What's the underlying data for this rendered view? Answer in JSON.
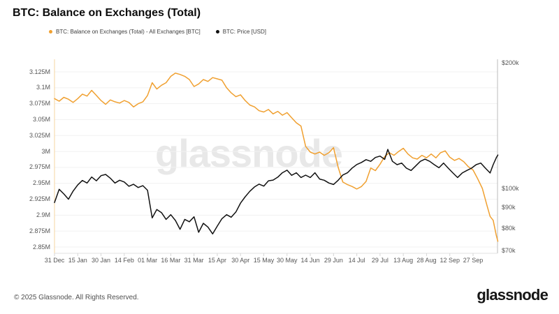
{
  "header": {
    "title": "BTC: Balance on Exchanges (Total)"
  },
  "legend": [
    {
      "label": "BTC: Balance on Exchanges (Total) - All Exchanges [BTC]",
      "color": "#f0a030"
    },
    {
      "label": "BTC: Price [USD]",
      "color": "#111111"
    }
  ],
  "watermark": "glassnode",
  "footer": {
    "copyright": "© 2025 Glassnode. All Rights Reserved.",
    "brand": "glassnode"
  },
  "colors": {
    "balance_line": "#f0a030",
    "price_line": "#111111",
    "grid": "#f1f1f1",
    "left_spine": "#f6d5a2",
    "right_spine": "#bbbbbb",
    "bottom_spine": "#e2e2e2",
    "tick_mark": "#d6d6d6"
  },
  "chart_data": {
    "type": "line",
    "title": "BTC: Balance on Exchanges (Total)",
    "grid": "horizontal-only",
    "legend_position": "top-left",
    "x_axis": {
      "unit": "days since 31 Dec",
      "domain_days": [
        0,
        286
      ],
      "tick_days": [
        0,
        15,
        30,
        45,
        60,
        75,
        90,
        105,
        120,
        135,
        150,
        165,
        180,
        195,
        210,
        225,
        240,
        255,
        270
      ],
      "tick_labels": [
        "31 Dec",
        "15 Jan",
        "30 Jan",
        "14 Feb",
        "01 Mar",
        "16 Mar",
        "31 Mar",
        "15 Apr",
        "30 Apr",
        "15 May",
        "30 May",
        "14 Jun",
        "29 Jun",
        "14 Jul",
        "29 Jul",
        "13 Aug",
        "28 Aug",
        "12 Sep",
        "27 Sep"
      ]
    },
    "y_left": {
      "scale": "linear",
      "unit": "BTC (millions)",
      "tick_values": [
        3.125,
        3.1,
        3.075,
        3.05,
        3.025,
        3.0,
        2.975,
        2.95,
        2.925,
        2.9,
        2.875,
        2.85
      ],
      "tick_labels": [
        "3.125M",
        "3.1M",
        "3.075M",
        "3.05M",
        "3.025M",
        "3M",
        "2.975M",
        "2.95M",
        "2.925M",
        "2.9M",
        "2.875M",
        "2.85M"
      ]
    },
    "y_right": {
      "scale": "log",
      "unit": "USD (thousands)",
      "tick_values": [
        200,
        100,
        90,
        80,
        70
      ],
      "tick_labels": [
        "$200k",
        "$100k",
        "$90k",
        "$80k",
        "$70k"
      ]
    },
    "series": [
      {
        "name": "BTC: Balance on Exchanges (Total) - All Exchanges [BTC]",
        "axis": "left",
        "color": "#f0a030",
        "unit": "M BTC",
        "points": [
          [
            0,
            3.083
          ],
          [
            3,
            3.079
          ],
          [
            6,
            3.085
          ],
          [
            9,
            3.082
          ],
          [
            12,
            3.077
          ],
          [
            15,
            3.083
          ],
          [
            18,
            3.09
          ],
          [
            21,
            3.087
          ],
          [
            24,
            3.096
          ],
          [
            27,
            3.088
          ],
          [
            30,
            3.08
          ],
          [
            33,
            3.074
          ],
          [
            36,
            3.081
          ],
          [
            39,
            3.078
          ],
          [
            42,
            3.076
          ],
          [
            45,
            3.08
          ],
          [
            48,
            3.077
          ],
          [
            51,
            3.07
          ],
          [
            54,
            3.075
          ],
          [
            57,
            3.078
          ],
          [
            60,
            3.088
          ],
          [
            63,
            3.108
          ],
          [
            66,
            3.098
          ],
          [
            69,
            3.104
          ],
          [
            72,
            3.108
          ],
          [
            75,
            3.118
          ],
          [
            78,
            3.123
          ],
          [
            81,
            3.121
          ],
          [
            84,
            3.118
          ],
          [
            87,
            3.113
          ],
          [
            90,
            3.102
          ],
          [
            93,
            3.106
          ],
          [
            96,
            3.113
          ],
          [
            99,
            3.11
          ],
          [
            102,
            3.116
          ],
          [
            105,
            3.114
          ],
          [
            108,
            3.112
          ],
          [
            111,
            3.1
          ],
          [
            114,
            3.092
          ],
          [
            117,
            3.086
          ],
          [
            120,
            3.089
          ],
          [
            123,
            3.08
          ],
          [
            126,
            3.073
          ],
          [
            129,
            3.07
          ],
          [
            132,
            3.064
          ],
          [
            135,
            3.062
          ],
          [
            138,
            3.066
          ],
          [
            141,
            3.059
          ],
          [
            144,
            3.063
          ],
          [
            147,
            3.057
          ],
          [
            150,
            3.061
          ],
          [
            153,
            3.053
          ],
          [
            156,
            3.045
          ],
          [
            159,
            3.04
          ],
          [
            162,
            3.008
          ],
          [
            165,
            2.999
          ],
          [
            168,
            2.996
          ],
          [
            171,
            2.999
          ],
          [
            174,
            2.994
          ],
          [
            177,
            2.998
          ],
          [
            180,
            3.006
          ],
          [
            183,
            2.975
          ],
          [
            186,
            2.952
          ],
          [
            189,
            2.948
          ],
          [
            192,
            2.945
          ],
          [
            195,
            2.941
          ],
          [
            198,
            2.945
          ],
          [
            201,
            2.953
          ],
          [
            204,
            2.974
          ],
          [
            207,
            2.97
          ],
          [
            210,
            2.98
          ],
          [
            213,
            2.992
          ],
          [
            216,
            2.998
          ],
          [
            219,
            2.994
          ],
          [
            222,
            3.0
          ],
          [
            225,
            3.005
          ],
          [
            228,
            2.996
          ],
          [
            231,
            2.99
          ],
          [
            234,
            2.988
          ],
          [
            237,
            2.994
          ],
          [
            240,
            2.99
          ],
          [
            243,
            2.996
          ],
          [
            246,
            2.99
          ],
          [
            249,
            2.998
          ],
          [
            252,
            3.001
          ],
          [
            255,
            2.991
          ],
          [
            258,
            2.986
          ],
          [
            261,
            2.989
          ],
          [
            264,
            2.984
          ],
          [
            267,
            2.976
          ],
          [
            270,
            2.971
          ],
          [
            273,
            2.957
          ],
          [
            276,
            2.942
          ],
          [
            279,
            2.915
          ],
          [
            281,
            2.898
          ],
          [
            283,
            2.892
          ],
          [
            285,
            2.868
          ],
          [
            286,
            2.859
          ]
        ]
      },
      {
        "name": "BTC: Price [USD]",
        "axis": "right",
        "color": "#111111",
        "unit": "USD k",
        "points": [
          [
            0,
            92.5
          ],
          [
            3,
            99.5
          ],
          [
            6,
            97.0
          ],
          [
            9,
            94.2
          ],
          [
            12,
            98.5
          ],
          [
            15,
            102.0
          ],
          [
            18,
            104.5
          ],
          [
            21,
            103.0
          ],
          [
            24,
            106.5
          ],
          [
            27,
            104.3
          ],
          [
            30,
            107.3
          ],
          [
            33,
            108.0
          ],
          [
            36,
            105.8
          ],
          [
            39,
            103.0
          ],
          [
            42,
            104.6
          ],
          [
            45,
            103.6
          ],
          [
            48,
            101.2
          ],
          [
            51,
            102.3
          ],
          [
            54,
            100.5
          ],
          [
            57,
            101.5
          ],
          [
            60,
            99.0
          ],
          [
            63,
            85.0
          ],
          [
            66,
            89.0
          ],
          [
            69,
            87.5
          ],
          [
            72,
            84.3
          ],
          [
            75,
            86.5
          ],
          [
            78,
            83.8
          ],
          [
            81,
            79.8
          ],
          [
            84,
            84.3
          ],
          [
            87,
            83.2
          ],
          [
            90,
            85.5
          ],
          [
            93,
            78.5
          ],
          [
            96,
            82.5
          ],
          [
            99,
            80.8
          ],
          [
            102,
            77.8
          ],
          [
            105,
            81.2
          ],
          [
            108,
            84.6
          ],
          [
            111,
            86.5
          ],
          [
            114,
            85.3
          ],
          [
            117,
            87.8
          ],
          [
            120,
            92.2
          ],
          [
            123,
            95.5
          ],
          [
            126,
            98.4
          ],
          [
            129,
            100.8
          ],
          [
            132,
            102.4
          ],
          [
            135,
            101.3
          ],
          [
            138,
            104.3
          ],
          [
            141,
            104.7
          ],
          [
            144,
            106.4
          ],
          [
            147,
            109.0
          ],
          [
            150,
            110.6
          ],
          [
            153,
            107.5
          ],
          [
            156,
            109.0
          ],
          [
            159,
            106.2
          ],
          [
            162,
            107.6
          ],
          [
            165,
            106.2
          ],
          [
            168,
            109.0
          ],
          [
            171,
            105.3
          ],
          [
            174,
            104.6
          ],
          [
            177,
            103.0
          ],
          [
            180,
            102.2
          ],
          [
            183,
            104.6
          ],
          [
            186,
            107.7
          ],
          [
            189,
            109.0
          ],
          [
            192,
            111.9
          ],
          [
            195,
            114.1
          ],
          [
            198,
            115.4
          ],
          [
            201,
            117.2
          ],
          [
            204,
            116.1
          ],
          [
            207,
            118.6
          ],
          [
            210,
            119.5
          ],
          [
            213,
            117.4
          ],
          [
            215,
            124.0
          ],
          [
            218,
            116.1
          ],
          [
            221,
            114.0
          ],
          [
            224,
            115.0
          ],
          [
            227,
            111.8
          ],
          [
            230,
            110.4
          ],
          [
            233,
            113.2
          ],
          [
            236,
            116.1
          ],
          [
            239,
            117.5
          ],
          [
            242,
            116.1
          ],
          [
            245,
            114.0
          ],
          [
            248,
            112.1
          ],
          [
            251,
            115.0
          ],
          [
            254,
            111.8
          ],
          [
            257,
            108.9
          ],
          [
            260,
            106.2
          ],
          [
            263,
            108.9
          ],
          [
            266,
            110.4
          ],
          [
            269,
            111.8
          ],
          [
            272,
            114.0
          ],
          [
            275,
            115.0
          ],
          [
            278,
            111.8
          ],
          [
            281,
            108.9
          ],
          [
            283,
            114.0
          ],
          [
            285,
            118.5
          ],
          [
            286,
            120.2
          ]
        ]
      }
    ]
  }
}
